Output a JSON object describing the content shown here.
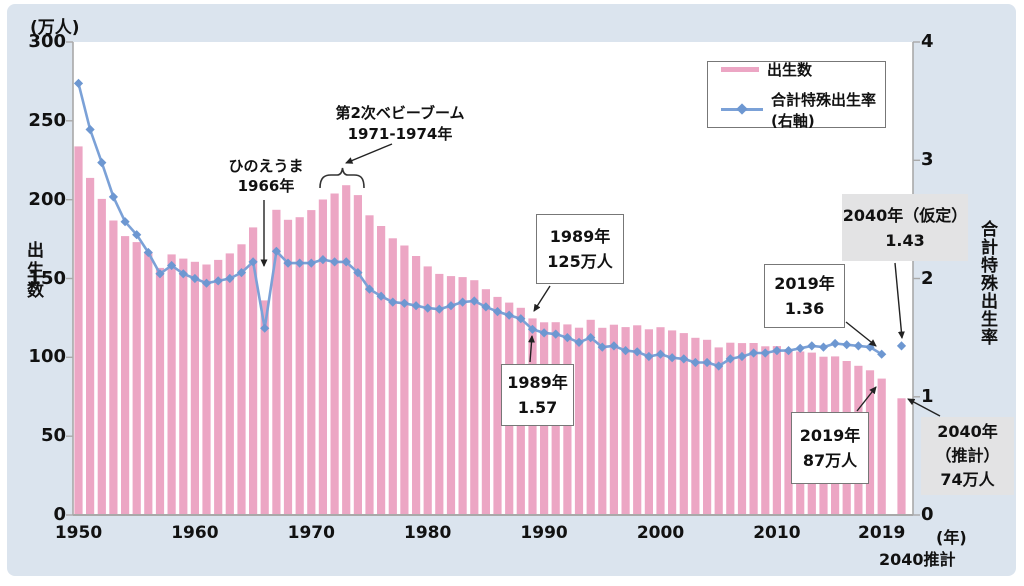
{
  "colors": {
    "background": "#dbe4ee",
    "plot_background": "#ffffff",
    "bar": "#eca6c4",
    "line": "#7ba1d7",
    "marker": "#6d97d1",
    "axis": "#a9a9a9",
    "text": "#111111",
    "callout_border": "#777777",
    "callout_gray_bg": "#e3e3e4",
    "arrow": "#222222"
  },
  "legend": {
    "births": "出生数",
    "tfr": "合計特殊出生率(右軸)"
  },
  "left_axis": {
    "unit": "(万人)",
    "title": "出生数",
    "ticks": [
      300,
      250,
      200,
      150,
      100,
      50,
      0
    ],
    "range": [
      0,
      300
    ]
  },
  "right_axis": {
    "title": "合計特殊出生率",
    "ticks": [
      4,
      3,
      2,
      1,
      0
    ],
    "range": [
      0,
      4
    ]
  },
  "x_axis": {
    "ticks": [
      1950,
      1960,
      1970,
      1980,
      1990,
      2000,
      2010,
      2019
    ],
    "unit": "(年)",
    "projection_label": "2040推計"
  },
  "annotations": {
    "boom": {
      "line1": "第2次ベビーブーム",
      "line2": "1971-1974年"
    },
    "hinoeuma": {
      "line1": "ひのえうま",
      "line2": "1966年"
    },
    "births_1989": {
      "line1": "1989年",
      "line2": "125万人"
    },
    "tfr_1989": {
      "line1": "1989年",
      "line2": "1.57"
    },
    "tfr_2019": {
      "line1": "2019年",
      "line2": "1.36"
    },
    "tfr_2040": {
      "line1": "2040年（仮定）",
      "line2": "1.43"
    },
    "births_2019": {
      "line1": "2019年",
      "line2": "87万人"
    },
    "births_2040": {
      "line1": "2040年",
      "line2": "（推計）",
      "line3": "74万人"
    }
  },
  "chart_data": {
    "type": "bar+line",
    "x": [
      1950,
      1951,
      1952,
      1953,
      1954,
      1955,
      1956,
      1957,
      1958,
      1959,
      1960,
      1961,
      1962,
      1963,
      1964,
      1965,
      1966,
      1967,
      1968,
      1969,
      1970,
      1971,
      1972,
      1973,
      1974,
      1975,
      1976,
      1977,
      1978,
      1979,
      1980,
      1981,
      1982,
      1983,
      1984,
      1985,
      1986,
      1987,
      1988,
      1989,
      1990,
      1991,
      1992,
      1993,
      1994,
      1995,
      1996,
      1997,
      1998,
      1999,
      2000,
      2001,
      2002,
      2003,
      2004,
      2005,
      2006,
      2007,
      2008,
      2009,
      2010,
      2011,
      2012,
      2013,
      2014,
      2015,
      2016,
      2017,
      2018,
      2019,
      2040
    ],
    "series": [
      {
        "name": "出生数",
        "type": "bar",
        "axis": "left",
        "unit": "万人",
        "values": [
          233.8,
          213.8,
          200.5,
          186.8,
          176.9,
          173.1,
          166.5,
          156.7,
          165.3,
          162.6,
          160.6,
          158.9,
          161.8,
          165.9,
          171.7,
          182.4,
          136.1,
          193.6,
          187.2,
          188.9,
          193.4,
          200.1,
          203.9,
          209.2,
          202.9,
          190.1,
          183.3,
          175.5,
          170.9,
          164.3,
          157.7,
          152.9,
          151.5,
          150.9,
          148.9,
          143.2,
          138.3,
          134.7,
          131.4,
          124.7,
          122.2,
          122.3,
          120.9,
          118.8,
          123.8,
          118.7,
          120.7,
          119.2,
          120.3,
          117.8,
          119.1,
          117.1,
          115.4,
          112.4,
          111.1,
          106.3,
          109.3,
          109.0,
          109.1,
          107.0,
          107.1,
          105.1,
          103.7,
          103.0,
          100.4,
          100.6,
          97.7,
          94.6,
          91.8,
          86.5,
          74.0
        ]
      },
      {
        "name": "合計特殊出生率(右軸)",
        "type": "line",
        "axis": "right",
        "values": [
          3.65,
          3.26,
          2.98,
          2.69,
          2.48,
          2.37,
          2.22,
          2.04,
          2.11,
          2.04,
          2.0,
          1.96,
          1.98,
          2.0,
          2.05,
          2.14,
          1.58,
          2.23,
          2.13,
          2.13,
          2.13,
          2.16,
          2.14,
          2.14,
          2.05,
          1.91,
          1.85,
          1.8,
          1.79,
          1.77,
          1.75,
          1.74,
          1.77,
          1.8,
          1.81,
          1.76,
          1.72,
          1.69,
          1.66,
          1.57,
          1.54,
          1.53,
          1.5,
          1.46,
          1.5,
          1.42,
          1.43,
          1.39,
          1.38,
          1.34,
          1.36,
          1.33,
          1.32,
          1.29,
          1.29,
          1.26,
          1.32,
          1.34,
          1.37,
          1.37,
          1.39,
          1.39,
          1.41,
          1.43,
          1.42,
          1.45,
          1.44,
          1.43,
          1.42,
          1.36,
          1.43
        ]
      }
    ],
    "left_ylim": [
      0,
      300
    ],
    "right_ylim": [
      0,
      4
    ],
    "x_tick_labels": [
      "1950",
      "1960",
      "1970",
      "1980",
      "1990",
      "2000",
      "2010",
      "2019"
    ],
    "last_point_detached": true,
    "legend_position": "top-right",
    "grid": false
  }
}
